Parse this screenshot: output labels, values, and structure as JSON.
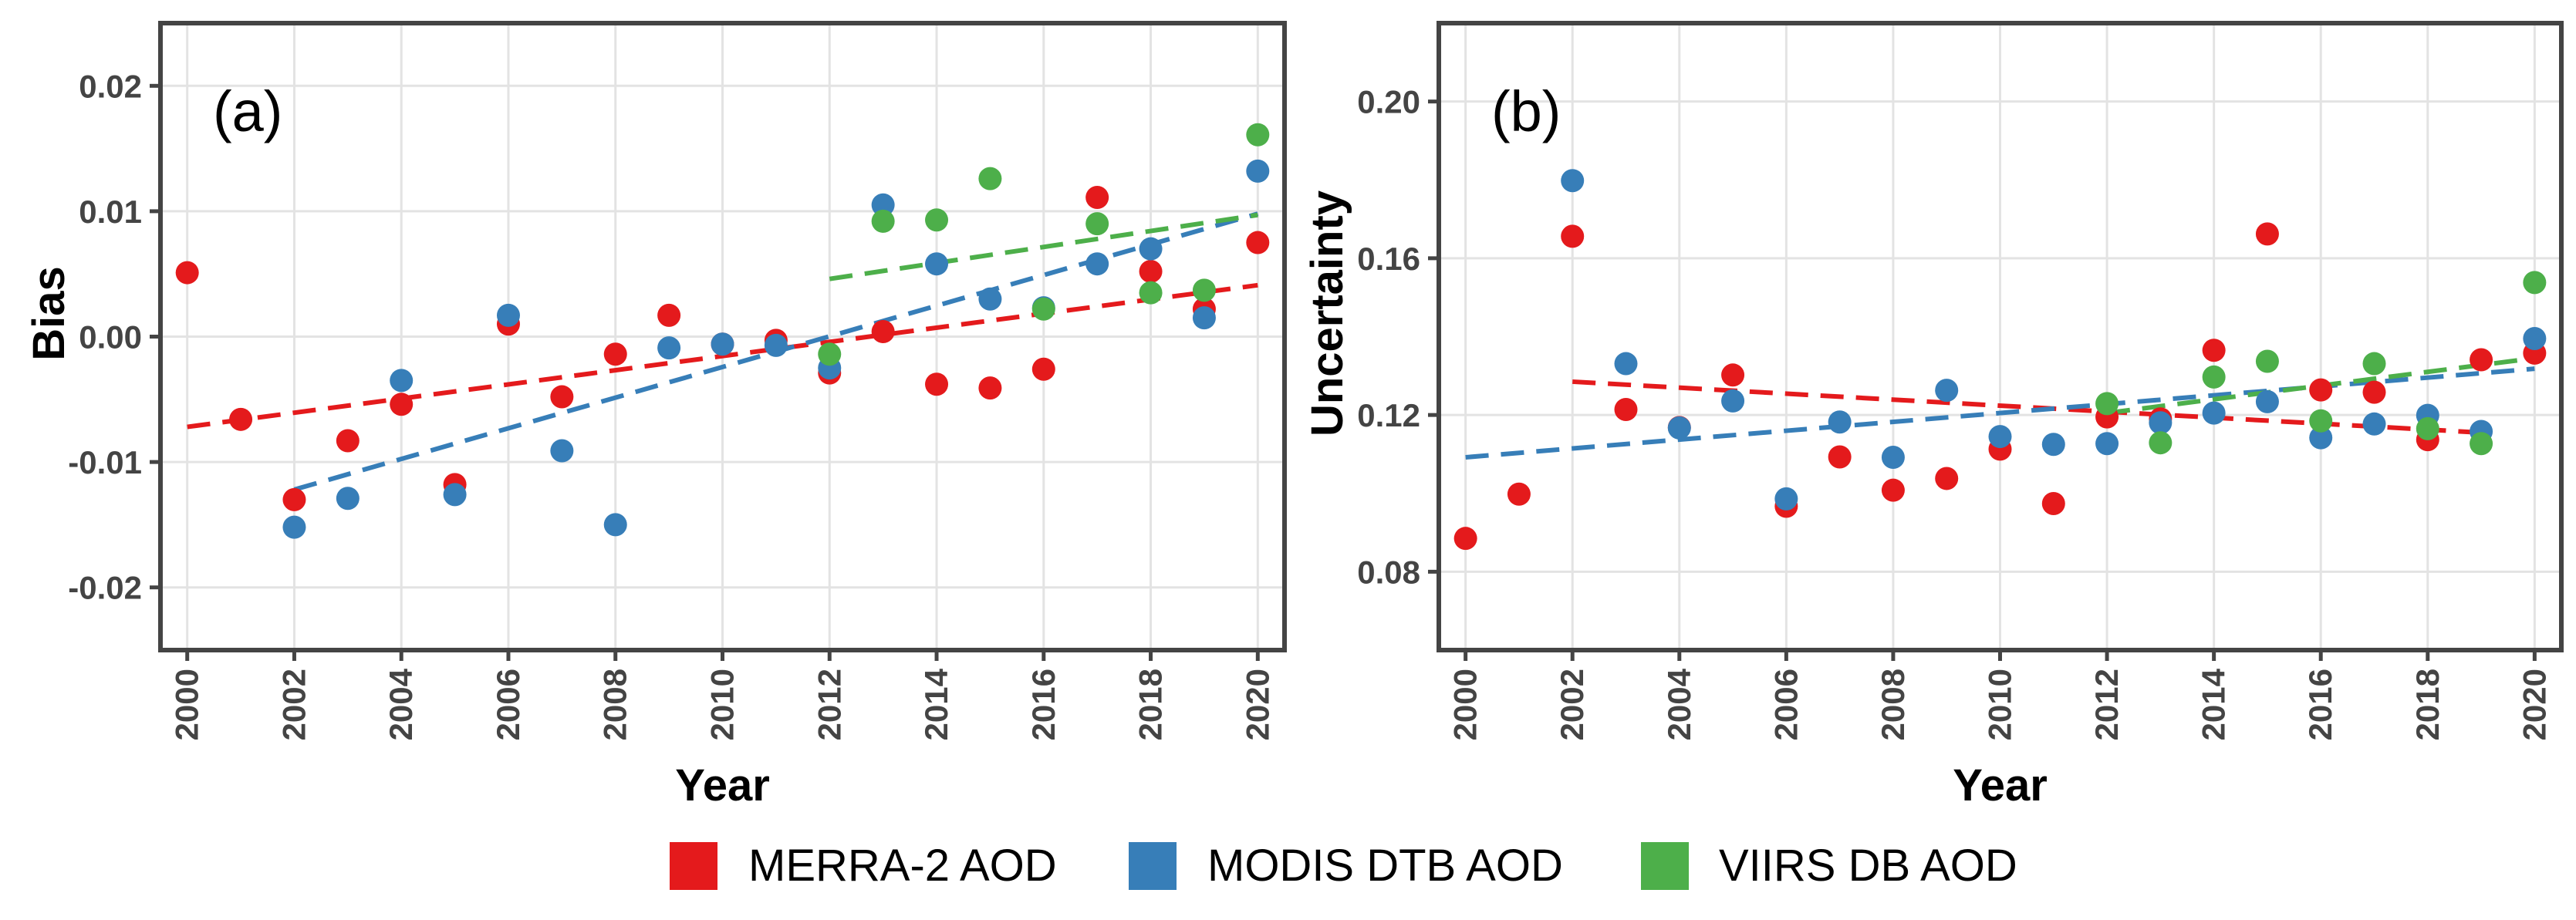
{
  "colors": {
    "merra": "#e41a1c",
    "modis": "#377eb8",
    "viirs": "#4daf4a",
    "grid": "#e3e3e3",
    "frame": "#444444"
  },
  "legend": [
    {
      "label": "MERRA-2 AOD",
      "color": "#e41a1c"
    },
    {
      "label": "MODIS DTB AOD",
      "color": "#377eb8"
    },
    {
      "label": "VIIRS DB AOD",
      "color": "#4daf4a"
    }
  ],
  "chart_data": [
    {
      "type": "scatter",
      "panel_label": "(a)",
      "xlabel": "Year",
      "ylabel": "Bias",
      "xlim": [
        1999.5,
        2020.5
      ],
      "ylim": [
        -0.025,
        0.025
      ],
      "xticks": [
        2000,
        2002,
        2004,
        2006,
        2008,
        2010,
        2012,
        2014,
        2016,
        2018,
        2020
      ],
      "xtick_labels": [
        "2000",
        "2002",
        "2004",
        "2006",
        "2008",
        "2010",
        "2012",
        "2014",
        "2016",
        "2018",
        "2020"
      ],
      "yticks": [
        -0.02,
        -0.01,
        0.0,
        0.01,
        0.02
      ],
      "ytick_labels": [
        "-0.02",
        "-0.01",
        "0.00",
        "0.01",
        "0.02"
      ],
      "series": [
        {
          "name": "MERRA-2 AOD",
          "color": "#e41a1c",
          "x": [
            2000,
            2001,
            2002,
            2003,
            2004,
            2005,
            2006,
            2007,
            2008,
            2009,
            2010,
            2011,
            2012,
            2013,
            2014,
            2015,
            2016,
            2017,
            2018,
            2019,
            2020
          ],
          "y": [
            0.0051,
            -0.0066,
            -0.013,
            -0.0083,
            -0.0054,
            -0.0118,
            0.001,
            -0.0048,
            -0.0014,
            0.0017,
            -0.0006,
            -0.0003,
            -0.0029,
            0.0004,
            -0.0038,
            -0.0041,
            -0.0026,
            0.0111,
            0.0052,
            0.0022,
            0.0075
          ],
          "trend": {
            "x": [
              2000,
              2020
            ],
            "y": [
              -0.0072,
              0.0041
            ]
          }
        },
        {
          "name": "MODIS DTB AOD",
          "color": "#377eb8",
          "x": [
            2002,
            2003,
            2004,
            2005,
            2006,
            2007,
            2008,
            2009,
            2010,
            2011,
            2012,
            2013,
            2014,
            2015,
            2016,
            2017,
            2018,
            2019,
            2020
          ],
          "y": [
            -0.0152,
            -0.0129,
            -0.0035,
            -0.0126,
            0.0017,
            -0.0091,
            -0.015,
            -0.0009,
            -0.0006,
            -0.0007,
            -0.0025,
            0.0105,
            0.0058,
            0.003,
            0.0023,
            0.0058,
            0.007,
            0.0015,
            0.0132
          ],
          "trend": {
            "x": [
              2002,
              2020
            ],
            "y": [
              -0.0122,
              0.0098
            ]
          }
        },
        {
          "name": "VIIRS DB AOD",
          "color": "#4daf4a",
          "x": [
            2012,
            2013,
            2014,
            2015,
            2016,
            2017,
            2018,
            2019,
            2020
          ],
          "y": [
            -0.0014,
            0.0092,
            0.0093,
            0.0126,
            0.0022,
            0.009,
            0.0035,
            0.0037,
            0.0161
          ],
          "trend": {
            "x": [
              2012,
              2020
            ],
            "y": [
              0.0046,
              0.0097
            ]
          }
        }
      ]
    },
    {
      "type": "scatter",
      "panel_label": "(b)",
      "xlabel": "Year",
      "ylabel": "Uncertainty",
      "xlim": [
        1999.5,
        2020.5
      ],
      "ylim": [
        0.06,
        0.22
      ],
      "xticks": [
        2000,
        2002,
        2004,
        2006,
        2008,
        2010,
        2012,
        2014,
        2016,
        2018,
        2020
      ],
      "xtick_labels": [
        "2000",
        "2002",
        "2004",
        "2006",
        "2008",
        "2010",
        "2012",
        "2014",
        "2016",
        "2018",
        "2020"
      ],
      "yticks": [
        0.08,
        0.12,
        0.16,
        0.2
      ],
      "ytick_labels": [
        "0.08",
        "0.12",
        "0.16",
        "0.20"
      ],
      "series": [
        {
          "name": "MERRA-2 AOD",
          "color": "#e41a1c",
          "x": [
            2000,
            2001,
            2002,
            2003,
            2004,
            2005,
            2006,
            2007,
            2008,
            2009,
            2010,
            2011,
            2012,
            2013,
            2014,
            2015,
            2016,
            2017,
            2018,
            2019,
            2020
          ],
          "y": [
            0.0885,
            0.0998,
            0.1656,
            0.1214,
            0.1168,
            0.1302,
            0.0967,
            0.1093,
            0.1008,
            0.1038,
            0.1113,
            0.0974,
            0.1195,
            0.119,
            0.1365,
            0.1662,
            0.1264,
            0.1258,
            0.1137,
            0.1341,
            0.1358
          ],
          "trend": {
            "x": [
              2002,
              2019
            ],
            "y": [
              0.1285,
              0.1155
            ]
          }
        },
        {
          "name": "MODIS DTB AOD",
          "color": "#377eb8",
          "x": [
            2002,
            2003,
            2004,
            2005,
            2006,
            2007,
            2008,
            2009,
            2010,
            2011,
            2012,
            2013,
            2014,
            2015,
            2016,
            2017,
            2018,
            2019,
            2020
          ],
          "y": [
            0.1798,
            0.1331,
            0.1167,
            0.1236,
            0.0986,
            0.1182,
            0.1092,
            0.1263,
            0.1145,
            0.1125,
            0.1127,
            0.118,
            0.1205,
            0.1234,
            0.1142,
            0.1177,
            0.1199,
            0.1158,
            0.1395
          ],
          "trend": {
            "x": [
              2000,
              2020
            ],
            "y": [
              0.1092,
              0.1318
            ]
          }
        },
        {
          "name": "VIIRS DB AOD",
          "color": "#4daf4a",
          "x": [
            2012,
            2013,
            2014,
            2015,
            2016,
            2017,
            2018,
            2019,
            2020
          ],
          "y": [
            0.1229,
            0.1129,
            0.1297,
            0.1337,
            0.1185,
            0.1331,
            0.1165,
            0.1127,
            0.1538
          ],
          "trend": {
            "x": [
              2012,
              2020
            ],
            "y": [
              0.1205,
              0.1345
            ]
          }
        }
      ]
    }
  ]
}
